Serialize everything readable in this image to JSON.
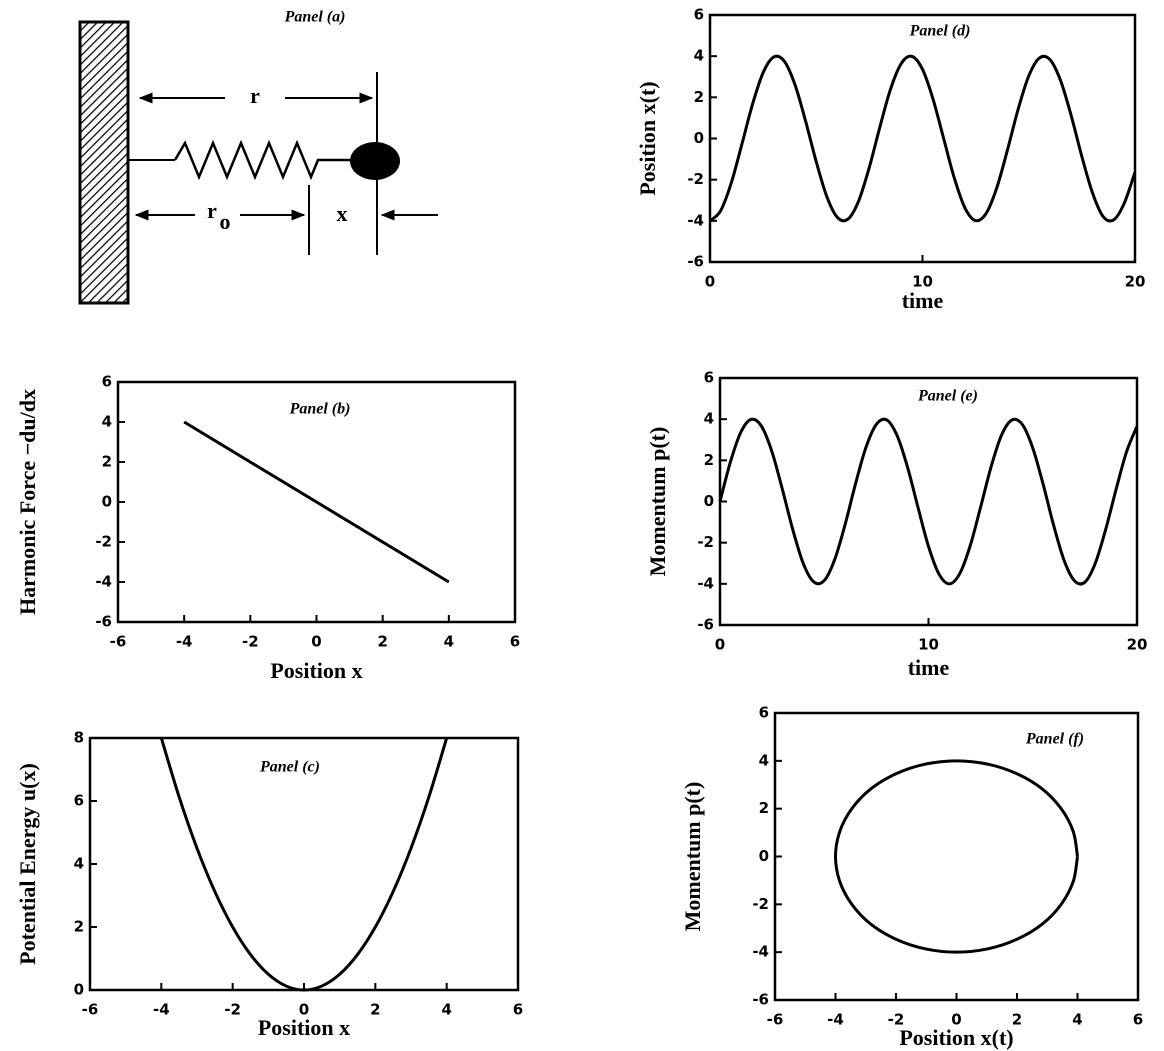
{
  "diagram": {
    "title": "Panel (a)",
    "r": "r",
    "r0": "r",
    "r0_sub": "o",
    "x": "x"
  },
  "chart_data": [
    {
      "type": "line",
      "title": "Panel (b)",
      "x_label": "Position x",
      "y_label": "Harmonic Force −du/dx",
      "color": "#000000",
      "x": [
        -4,
        4
      ],
      "values": [
        4,
        -4
      ],
      "xlim": [
        -6,
        6
      ],
      "ylim": [
        -6,
        6
      ],
      "xticks": [
        -6,
        -4,
        -2,
        0,
        2,
        4,
        6
      ],
      "yticks": [
        -6,
        -4,
        -2,
        0,
        2,
        4,
        6
      ]
    },
    {
      "type": "line",
      "title": "Panel (c)",
      "x_label": "Position x",
      "y_label": "Potential Energy u(x)",
      "color": "#000000",
      "x": [
        -4,
        -3.5,
        -3,
        -2.5,
        -2,
        -1.5,
        -1,
        -0.5,
        0,
        0.5,
        1,
        1.5,
        2,
        2.5,
        3,
        3.5,
        4
      ],
      "values": [
        8,
        6.125,
        4.5,
        3.125,
        2,
        1.125,
        0.5,
        0.125,
        0,
        0.125,
        0.5,
        1.125,
        2,
        3.125,
        4.5,
        6.125,
        8
      ],
      "xlim": [
        -6,
        6
      ],
      "ylim": [
        0,
        8
      ],
      "xticks": [
        -6,
        -4,
        -2,
        0,
        2,
        4,
        6
      ],
      "yticks": [
        0,
        2,
        4,
        6,
        8
      ]
    },
    {
      "type": "line",
      "title": "Panel (d)",
      "x_label": "time",
      "y_label": "Position x(t)",
      "color": "#000000",
      "x": [
        0,
        0.5,
        1,
        1.5,
        2,
        2.5,
        3,
        3.5,
        4,
        4.5,
        5,
        5.5,
        6,
        6.5,
        7,
        7.5,
        8,
        8.5,
        9,
        9.5,
        10,
        10.5,
        11,
        11.5,
        12,
        12.5,
        13,
        13.5,
        14,
        14.5,
        15,
        15.5,
        16,
        16.5,
        17,
        17.5,
        18,
        18.5,
        19,
        19.5,
        20
      ],
      "values": [
        -4,
        -3.51,
        -2.16,
        -0.28,
        1.66,
        3.2,
        3.96,
        3.75,
        2.61,
        0.84,
        -1.13,
        -2.83,
        -3.84,
        -3.91,
        -3.02,
        -1.39,
        0.58,
        2.41,
        3.64,
        3.99,
        3.36,
        1.9,
        -0.02,
        -1.93,
        -3.38,
        -3.99,
        -3.63,
        -2.38,
        -0.55,
        1.42,
        3.04,
        3.91,
        3.83,
        2.81,
        1.1,
        -0.88,
        -2.64,
        -3.79,
        -3.95,
        -3.13,
        -1.63
      ],
      "xlim": [
        0,
        20
      ],
      "ylim": [
        -6,
        6
      ],
      "xticks": [
        0,
        10,
        20
      ],
      "yticks": [
        -6,
        -4,
        -2,
        0,
        2,
        4,
        6
      ]
    },
    {
      "type": "line",
      "title": "Panel (e)",
      "x_label": "time",
      "y_label": "Momentum p(t)",
      "color": "#000000",
      "x": [
        0,
        0.5,
        1,
        1.5,
        2,
        2.5,
        3,
        3.5,
        4,
        4.5,
        5,
        5.5,
        6,
        6.5,
        7,
        7.5,
        8,
        8.5,
        9,
        9.5,
        10,
        10.5,
        11,
        11.5,
        12,
        12.5,
        13,
        13.5,
        14,
        14.5,
        15,
        15.5,
        16,
        16.5,
        17,
        17.5,
        18,
        18.5,
        19,
        19.5,
        20
      ],
      "values": [
        0,
        1.92,
        3.37,
        3.99,
        3.64,
        2.39,
        0.56,
        -1.4,
        -3.03,
        -3.91,
        -3.84,
        -2.82,
        -1.12,
        0.86,
        2.63,
        3.75,
        3.96,
        3.19,
        1.65,
        -0.3,
        -2.18,
        -3.52,
        -4,
        -3.5,
        -2.15,
        -0.27,
        1.68,
        3.22,
        3.96,
        3.74,
        2.6,
        0.83,
        -1.15,
        -2.85,
        -3.85,
        -3.92,
        -3,
        -1.35,
        0.6,
        2.42,
        3.65
      ],
      "xlim": [
        0,
        20
      ],
      "ylim": [
        -6,
        6
      ],
      "xticks": [
        0,
        10,
        20
      ],
      "yticks": [
        -6,
        -4,
        -2,
        0,
        2,
        4,
        6
      ]
    },
    {
      "type": "line",
      "title": "Panel (f)",
      "x_label": "Position x(t)",
      "y_label": "Momentum p(t)",
      "color": "#000000",
      "x": [
        4,
        3.86,
        3.46,
        2.83,
        2,
        1.04,
        0,
        -1.04,
        -2,
        -2.83,
        -3.46,
        -3.86,
        -4,
        -3.86,
        -3.46,
        -2.83,
        -2,
        -1.04,
        0,
        1.04,
        2,
        2.83,
        3.46,
        3.86,
        4
      ],
      "values": [
        0,
        1.04,
        2,
        2.83,
        3.46,
        3.86,
        4,
        3.86,
        3.46,
        2.83,
        2,
        1.04,
        0,
        -1.04,
        -2,
        -2.83,
        -3.46,
        -3.86,
        -4,
        -3.86,
        -3.46,
        -2.83,
        -2,
        -1.04,
        0
      ],
      "xlim": [
        -6,
        6
      ],
      "ylim": [
        -6,
        6
      ],
      "xticks": [
        -6,
        -4,
        -2,
        0,
        2,
        4,
        6
      ],
      "yticks": [
        -6,
        -4,
        -2,
        0,
        2,
        4,
        6
      ]
    }
  ]
}
